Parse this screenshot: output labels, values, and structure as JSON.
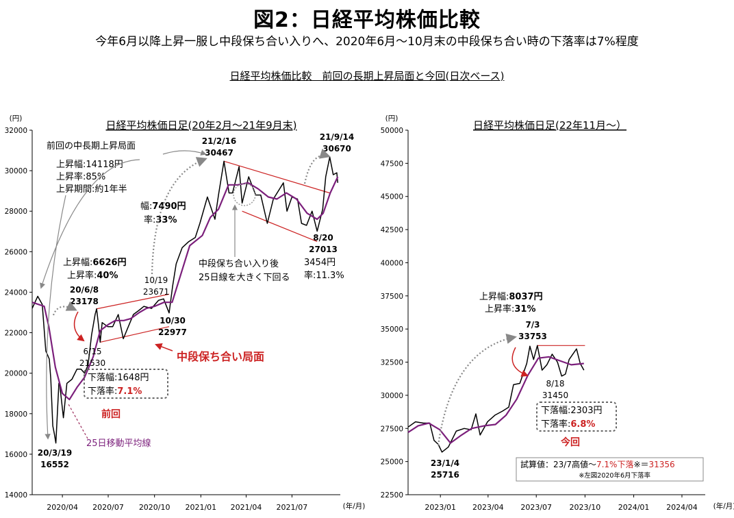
{
  "title": "図2：日経平均株価比較",
  "subtitle": "今年6月以降上昇一服し中段保ち合い入りへ、2020年6月～10月末の中段保ち合い時の下落率は7%程度",
  "section_title": "日経平均株価比較　前回の長期上昇局面と今回(日次ベース)",
  "colors": {
    "price": "#000000",
    "ma25": "#7b1f7b",
    "channel": "#cc2222",
    "highlight": "#cc2222",
    "arrow": "#888888"
  },
  "chart_data": [
    {
      "type": "line",
      "title": "日経平均株価日足(20年2月～21年9月末)",
      "yunit": "(円)",
      "xunit": "(年/月)",
      "ylim": [
        14000,
        32000
      ],
      "yticks": [
        14000,
        16000,
        18000,
        20000,
        22000,
        24000,
        26000,
        28000,
        30000,
        32000
      ],
      "xlim": [
        "2020-02-01",
        "2021-10-05"
      ],
      "xticks": [
        {
          "date": "2020-04-01",
          "label": "2020/04"
        },
        {
          "date": "2020-07-01",
          "label": "2020/07"
        },
        {
          "date": "2020-10-01",
          "label": "2020/10"
        },
        {
          "date": "2021-01-01",
          "label": "2021/01"
        },
        {
          "date": "2021-04-01",
          "label": "2021/04"
        },
        {
          "date": "2021-07-01",
          "label": "2021/07"
        }
      ],
      "series": [
        {
          "role": "price",
          "points": [
            [
              "2020-02-01",
              23200
            ],
            [
              "2020-02-12",
              23800
            ],
            [
              "2020-02-21",
              23400
            ],
            [
              "2020-02-28",
              21100
            ],
            [
              "2020-03-06",
              20700
            ],
            [
              "2020-03-09",
              19700
            ],
            [
              "2020-03-13",
              17400
            ],
            [
              "2020-03-16",
              17000
            ],
            [
              "2020-03-19",
              16552
            ],
            [
              "2020-03-25",
              19500
            ],
            [
              "2020-03-27",
              19400
            ],
            [
              "2020-04-03",
              17800
            ],
            [
              "2020-04-10",
              19500
            ],
            [
              "2020-04-20",
              19700
            ],
            [
              "2020-04-30",
              20200
            ],
            [
              "2020-05-08",
              20200
            ],
            [
              "2020-05-15",
              20000
            ],
            [
              "2020-05-22",
              20400
            ],
            [
              "2020-05-29",
              21900
            ],
            [
              "2020-06-05",
              22900
            ],
            [
              "2020-06-08",
              23178
            ],
            [
              "2020-06-12",
              22300
            ],
            [
              "2020-06-15",
              21530
            ],
            [
              "2020-06-19",
              22500
            ],
            [
              "2020-06-30",
              22300
            ],
            [
              "2020-07-10",
              22300
            ],
            [
              "2020-07-21",
              22900
            ],
            [
              "2020-07-31",
              21700
            ],
            [
              "2020-08-10",
              22300
            ],
            [
              "2020-08-20",
              22900
            ],
            [
              "2020-08-31",
              23100
            ],
            [
              "2020-09-10",
              23300
            ],
            [
              "2020-09-25",
              23200
            ],
            [
              "2020-10-09",
              23600
            ],
            [
              "2020-10-19",
              23671
            ],
            [
              "2020-10-30",
              22977
            ],
            [
              "2020-11-06",
              24300
            ],
            [
              "2020-11-13",
              25400
            ],
            [
              "2020-11-25",
              26200
            ],
            [
              "2020-12-08",
              26500
            ],
            [
              "2020-12-21",
              26700
            ],
            [
              "2020-12-30",
              27400
            ],
            [
              "2021-01-14",
              28700
            ],
            [
              "2021-01-29",
              27600
            ],
            [
              "2021-02-05",
              28800
            ],
            [
              "2021-02-16",
              30467
            ],
            [
              "2021-02-26",
              28900
            ],
            [
              "2021-03-05",
              28900
            ],
            [
              "2021-03-18",
              30200
            ],
            [
              "2021-03-24",
              28400
            ],
            [
              "2021-04-06",
              29700
            ],
            [
              "2021-04-20",
              28800
            ],
            [
              "2021-04-30",
              28800
            ],
            [
              "2021-05-13",
              27400
            ],
            [
              "2021-05-25",
              28600
            ],
            [
              "2021-06-14",
              29400
            ],
            [
              "2021-06-21",
              28000
            ],
            [
              "2021-07-01",
              28700
            ],
            [
              "2021-07-12",
              28600
            ],
            [
              "2021-07-20",
              27400
            ],
            [
              "2021-07-30",
              27300
            ],
            [
              "2021-08-10",
              28000
            ],
            [
              "2021-08-20",
              27013
            ],
            [
              "2021-08-31",
              28100
            ],
            [
              "2021-09-06",
              29700
            ],
            [
              "2021-09-14",
              30670
            ],
            [
              "2021-09-21",
              29800
            ],
            [
              "2021-09-28",
              29900
            ],
            [
              "2021-09-30",
              29400
            ]
          ]
        },
        {
          "role": "ma25",
          "name": "25日移動平均線",
          "points": [
            [
              "2020-02-01",
              23500
            ],
            [
              "2020-02-25",
              23300
            ],
            [
              "2020-03-05",
              22300
            ],
            [
              "2020-03-18",
              20300
            ],
            [
              "2020-04-01",
              19000
            ],
            [
              "2020-04-15",
              18700
            ],
            [
              "2020-04-30",
              19300
            ],
            [
              "2020-05-15",
              19800
            ],
            [
              "2020-06-01",
              20800
            ],
            [
              "2020-06-15",
              22100
            ],
            [
              "2020-07-01",
              22400
            ],
            [
              "2020-07-15",
              22600
            ],
            [
              "2020-08-01",
              22600
            ],
            [
              "2020-08-15",
              22700
            ],
            [
              "2020-09-01",
              23000
            ],
            [
              "2020-09-15",
              23200
            ],
            [
              "2020-10-01",
              23300
            ],
            [
              "2020-10-20",
              23500
            ],
            [
              "2020-11-05",
              23500
            ],
            [
              "2020-11-20",
              24700
            ],
            [
              "2020-12-10",
              26300
            ],
            [
              "2021-01-04",
              26800
            ],
            [
              "2021-01-20",
              27700
            ],
            [
              "2021-02-05",
              28100
            ],
            [
              "2021-02-25",
              29300
            ],
            [
              "2021-03-15",
              29300
            ],
            [
              "2021-04-05",
              29400
            ],
            [
              "2021-04-25",
              29100
            ],
            [
              "2021-05-15",
              28700
            ],
            [
              "2021-06-01",
              28600
            ],
            [
              "2021-06-20",
              28900
            ],
            [
              "2021-07-10",
              28600
            ],
            [
              "2021-07-31",
              27900
            ],
            [
              "2021-08-20",
              27600
            ],
            [
              "2021-09-01",
              27900
            ],
            [
              "2021-09-15",
              28900
            ],
            [
              "2021-09-30",
              29700
            ]
          ]
        }
      ],
      "channels": [
        {
          "from": [
            "2020-06-08",
            23178
          ],
          "to": [
            "2020-10-30",
            23900
          ]
        },
        {
          "from": [
            "2020-06-15",
            21530
          ],
          "to": [
            "2020-10-30",
            22300
          ]
        },
        {
          "from": [
            "2021-02-16",
            30467
          ],
          "to": [
            "2021-09-14",
            28900
          ]
        },
        {
          "from": [
            "2021-03-24",
            28000
          ],
          "to": [
            "2021-08-20",
            26500
          ]
        }
      ],
      "annotations": [
        {
          "id": "peak-jun",
          "lines": [
            "20/6/8",
            "23178"
          ],
          "bold": true,
          "at": [
            "2020-06-08",
            23178
          ]
        },
        {
          "id": "low-mar",
          "lines": [
            "20/3/19",
            "16552"
          ],
          "bold": true,
          "at": [
            "2020-03-19",
            16552
          ]
        },
        {
          "id": "low-jun",
          "lines": [
            "6/15",
            "21530"
          ],
          "bold": false,
          "at": [
            "2020-06-15",
            21530
          ]
        },
        {
          "id": "oct19",
          "lines": [
            "10/19",
            "23671"
          ],
          "bold": false,
          "at": [
            "2020-10-19",
            23671
          ]
        },
        {
          "id": "oct30",
          "lines": [
            "10/30",
            "22977"
          ],
          "bold": true,
          "at": [
            "2020-10-30",
            22977
          ]
        },
        {
          "id": "peak-feb",
          "lines": [
            "21/2/16",
            "30467"
          ],
          "bold": true,
          "at": [
            "2021-02-16",
            30467
          ]
        },
        {
          "id": "peak-sep",
          "lines": [
            "21/9/14",
            "30670"
          ],
          "bold": true,
          "at": [
            "2021-09-14",
            30670
          ]
        },
        {
          "id": "low-aug",
          "lines": [
            "8/20",
            "27013"
          ],
          "bold": true,
          "at": [
            "2021-08-20",
            27013
          ]
        }
      ],
      "notes": {
        "previous_label": "前回の中長期上昇局面",
        "rise_amount": "上昇幅:14118円",
        "rise_rate": "上昇率:85%",
        "rise_period": "上昇期間:約1年半",
        "rise2_amount_prefix": "上昇幅:",
        "rise2_amount_value": "6626円",
        "rise2_rate_prefix": "上昇率:",
        "rise2_rate_value": "40%",
        "rise3_amount_prefix": "幅:",
        "rise3_amount_value": "7490円",
        "rise3_rate_prefix": "率:",
        "rise3_rate_value": "33%",
        "fall_amount": "下落幅:1648円",
        "fall_rate_prefix": "下落率:",
        "fall_rate_value": "7.1%",
        "consolidation": "中段保ち合い局面",
        "previous": "前回",
        "ma25_label": "25日移動平均線",
        "break_line1": "中段保ち合い入り後",
        "break_line2": "25日線を大きく下回る",
        "fall2_amount": "3454円",
        "fall2_rate": "率:11.3%"
      }
    },
    {
      "type": "line",
      "title": "日経平均株価日足(22年11月～）",
      "yunit": "(円)",
      "xunit": "(年/月)",
      "ylim": [
        22500,
        50000
      ],
      "yticks": [
        22500,
        25000,
        27500,
        30000,
        32500,
        35000,
        37500,
        40000,
        42500,
        45000,
        47500,
        50000
      ],
      "xlim": [
        "2022-11-01",
        "2024-05-15"
      ],
      "xticks": [
        {
          "date": "2023-01-01",
          "label": "2023/01"
        },
        {
          "date": "2023-04-01",
          "label": "2023/04"
        },
        {
          "date": "2023-07-01",
          "label": "2023/07"
        },
        {
          "date": "2023-10-01",
          "label": "2023/10"
        },
        {
          "date": "2024-01-01",
          "label": "2024/01"
        },
        {
          "date": "2024-04-01",
          "label": "2024/04"
        }
      ],
      "series": [
        {
          "role": "price",
          "points": [
            [
              "2022-11-01",
              27600
            ],
            [
              "2022-11-15",
              28000
            ],
            [
              "2022-11-30",
              27900
            ],
            [
              "2022-12-12",
              27900
            ],
            [
              "2022-12-20",
              26600
            ],
            [
              "2022-12-28",
              26300
            ],
            [
              "2023-01-04",
              25716
            ],
            [
              "2023-01-16",
              26100
            ],
            [
              "2023-01-31",
              27300
            ],
            [
              "2023-02-15",
              27500
            ],
            [
              "2023-02-28",
              27400
            ],
            [
              "2023-03-09",
              28600
            ],
            [
              "2023-03-17",
              27000
            ],
            [
              "2023-03-31",
              28000
            ],
            [
              "2023-04-14",
              28500
            ],
            [
              "2023-04-28",
              28800
            ],
            [
              "2023-05-10",
              29100
            ],
            [
              "2023-05-19",
              30800
            ],
            [
              "2023-05-31",
              30900
            ],
            [
              "2023-06-13",
              32400
            ],
            [
              "2023-06-19",
              33700
            ],
            [
              "2023-06-26",
              32700
            ],
            [
              "2023-07-03",
              33753
            ],
            [
              "2023-07-12",
              31900
            ],
            [
              "2023-07-21",
              32300
            ],
            [
              "2023-07-31",
              33100
            ],
            [
              "2023-08-10",
              32500
            ],
            [
              "2023-08-18",
              31450
            ],
            [
              "2023-08-25",
              31600
            ],
            [
              "2023-09-01",
              32700
            ],
            [
              "2023-09-15",
              33500
            ],
            [
              "2023-09-22",
              32400
            ],
            [
              "2023-09-29",
              31900
            ]
          ]
        },
        {
          "role": "ma25",
          "points": [
            [
              "2022-11-01",
              27200
            ],
            [
              "2022-11-20",
              27700
            ],
            [
              "2022-12-10",
              27900
            ],
            [
              "2022-12-31",
              27400
            ],
            [
              "2023-01-20",
              26400
            ],
            [
              "2023-02-10",
              27000
            ],
            [
              "2023-03-01",
              27500
            ],
            [
              "2023-03-25",
              27700
            ],
            [
              "2023-04-15",
              27800
            ],
            [
              "2023-05-05",
              28500
            ],
            [
              "2023-05-25",
              29700
            ],
            [
              "2023-06-15",
              31500
            ],
            [
              "2023-07-05",
              32800
            ],
            [
              "2023-07-25",
              32900
            ],
            [
              "2023-08-15",
              32600
            ],
            [
              "2023-09-05",
              32300
            ],
            [
              "2023-09-29",
              32400
            ]
          ]
        }
      ],
      "channels": [
        {
          "from": [
            "2023-07-03",
            33753
          ],
          "to": [
            "2023-10-01",
            33753
          ]
        }
      ],
      "annotations": [
        {
          "id": "peak-jul",
          "lines": [
            "7/3",
            "33753"
          ],
          "bold": true,
          "at": [
            "2023-07-03",
            33753
          ]
        },
        {
          "id": "low-aug",
          "lines": [
            "8/18",
            "31450"
          ],
          "bold": false,
          "at": [
            "2023-08-18",
            31450
          ]
        },
        {
          "id": "low-jan",
          "lines": [
            "23/1/4",
            "25716"
          ],
          "bold": true,
          "at": [
            "2023-01-04",
            25716
          ]
        }
      ],
      "notes": {
        "rise_amount_prefix": "上昇幅:",
        "rise_amount_value": "8037円",
        "rise_rate_prefix": "上昇率:",
        "rise_rate_value": "31%",
        "fall_amount": "下落幅:2303円",
        "fall_rate_prefix": "下落率:",
        "fall_rate_value": "6.8%",
        "current": "今回",
        "trial_prefix": "試算値：23/7高値～",
        "trial_mid": "7.1%下落",
        "trial_mark": "※＝",
        "trial_value": "31356",
        "trial_note": "※左図2020年6月下落率"
      }
    }
  ]
}
